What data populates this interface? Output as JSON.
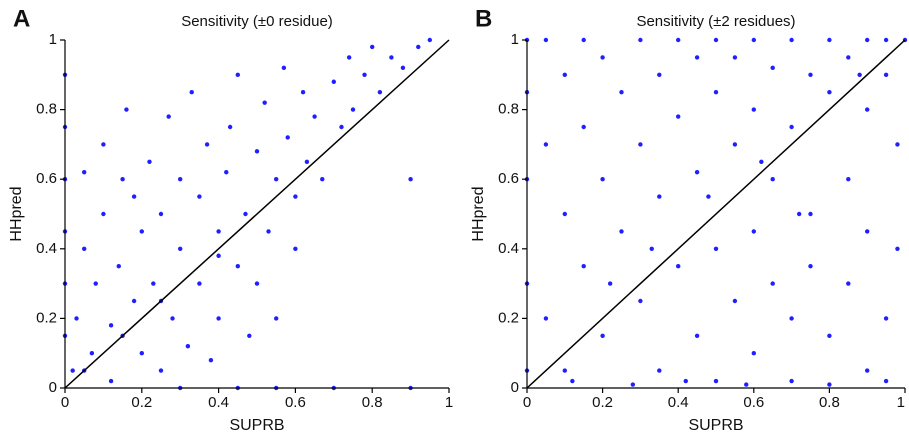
{
  "chart_data": [
    {
      "type": "scatter",
      "panel_label": "A",
      "title": "Sensitivity (±0 residue)",
      "x_label": "SUPRB",
      "y_label": "HHpred",
      "xlim": [
        0,
        1
      ],
      "ylim": [
        0,
        1
      ],
      "xticks": [
        0,
        0.2,
        0.4,
        0.6,
        0.8,
        1
      ],
      "yticks": [
        0,
        0.2,
        0.4,
        0.6,
        0.8,
        1
      ],
      "color": "#1f1fff",
      "diagonal": true,
      "series": [
        {
          "x": [
            0,
            0,
            0,
            0,
            0,
            0,
            0.02,
            0.03,
            0.05,
            0.05,
            0.07,
            0.08,
            0.1,
            0.1,
            0.12,
            0.12,
            0.14,
            0.15,
            0.16,
            0.18,
            0.2,
            0.2,
            0.22,
            0.23,
            0.25,
            0.25,
            0.27,
            0.28,
            0.3,
            0.3,
            0.32,
            0.33,
            0.35,
            0.35,
            0.37,
            0.38,
            0.4,
            0.4,
            0.42,
            0.43,
            0.45,
            0.45,
            0.47,
            0.48,
            0.5,
            0.5,
            0.52,
            0.53,
            0.55,
            0.55,
            0.57,
            0.58,
            0.6,
            0.6,
            0.62,
            0.63,
            0.65,
            0.67,
            0.7,
            0.72,
            0.74,
            0.75,
            0.78,
            0.8,
            0.82,
            0.85,
            0.88,
            0.9,
            0.92,
            0.95,
            0.3,
            0.45,
            0.55,
            0.7,
            0.9,
            0.15,
            0.25,
            0.05,
            0.4,
            0.18
          ],
          "y": [
            0.9,
            0.75,
            0.6,
            0.45,
            0.3,
            0.15,
            0.05,
            0.2,
            0.4,
            0.62,
            0.1,
            0.3,
            0.5,
            0.7,
            0.18,
            0.02,
            0.35,
            0.6,
            0.8,
            0.25,
            0.45,
            0.1,
            0.65,
            0.3,
            0.05,
            0.5,
            0.78,
            0.2,
            0.4,
            0.6,
            0.12,
            0.85,
            0.3,
            0.55,
            0.7,
            0.08,
            0.45,
            0.2,
            0.62,
            0.75,
            0.35,
            0.9,
            0.5,
            0.15,
            0.68,
            0.3,
            0.82,
            0.45,
            0.6,
            0.2,
            0.92,
            0.72,
            0.4,
            0.55,
            0.85,
            0.65,
            0.78,
            0.6,
            0.88,
            0.75,
            0.95,
            0.8,
            0.9,
            0.98,
            0.85,
            0.95,
            0.92,
            0.6,
            0.98,
            1,
            0,
            0,
            0,
            0,
            0,
            0.15,
            0.25,
            0.05,
            0.38,
            0.55
          ]
        }
      ]
    },
    {
      "type": "scatter",
      "panel_label": "B",
      "title": "Sensitivity (±2 residues)",
      "x_label": "SUPRB",
      "y_label": "HHpred",
      "xlim": [
        0,
        1
      ],
      "ylim": [
        0,
        1
      ],
      "xticks": [
        0,
        0.2,
        0.4,
        0.6,
        0.8,
        1
      ],
      "yticks": [
        0,
        0.2,
        0.4,
        0.6,
        0.8,
        1
      ],
      "color": "#1f1fff",
      "diagonal": true,
      "series": [
        {
          "x": [
            0,
            0,
            0,
            0,
            0,
            0.05,
            0.05,
            0.05,
            0.1,
            0.1,
            0.1,
            0.15,
            0.15,
            0.15,
            0.2,
            0.2,
            0.2,
            0.25,
            0.25,
            0.3,
            0.3,
            0.3,
            0.35,
            0.35,
            0.35,
            0.4,
            0.4,
            0.4,
            0.45,
            0.45,
            0.45,
            0.5,
            0.5,
            0.5,
            0.5,
            0.55,
            0.55,
            0.55,
            0.6,
            0.6,
            0.6,
            0.6,
            0.65,
            0.65,
            0.65,
            0.7,
            0.7,
            0.7,
            0.7,
            0.75,
            0.75,
            0.75,
            0.8,
            0.8,
            0.8,
            0.8,
            0.85,
            0.85,
            0.85,
            0.9,
            0.9,
            0.9,
            0.9,
            0.95,
            0.95,
            0.95,
            0.95,
            0.98,
            0.98,
            1,
            0.12,
            0.28,
            0.42,
            0.58,
            0.72,
            0.33,
            0.48,
            0.62,
            0.22,
            0.88
          ],
          "y": [
            1,
            0.85,
            0.6,
            0.3,
            0.05,
            1,
            0.7,
            0.2,
            0.9,
            0.5,
            0.05,
            1,
            0.75,
            0.35,
            0.95,
            0.6,
            0.15,
            0.85,
            0.45,
            1,
            0.7,
            0.25,
            0.9,
            0.55,
            0.05,
            1,
            0.78,
            0.35,
            0.95,
            0.62,
            0.15,
            1,
            0.85,
            0.4,
            0.02,
            0.95,
            0.7,
            0.25,
            1,
            0.8,
            0.45,
            0.1,
            0.92,
            0.6,
            0.3,
            1,
            0.75,
            0.2,
            0.02,
            0.9,
            0.5,
            0.35,
            1,
            0.85,
            0.15,
            0.01,
            0.95,
            0.6,
            0.3,
            1,
            0.8,
            0.45,
            0.05,
            1,
            0.9,
            0.2,
            0.02,
            0.7,
            0.4,
            1,
            0.02,
            0.01,
            0.02,
            0.01,
            0.5,
            0.4,
            0.55,
            0.65,
            0.3,
            0.9
          ]
        }
      ]
    }
  ]
}
